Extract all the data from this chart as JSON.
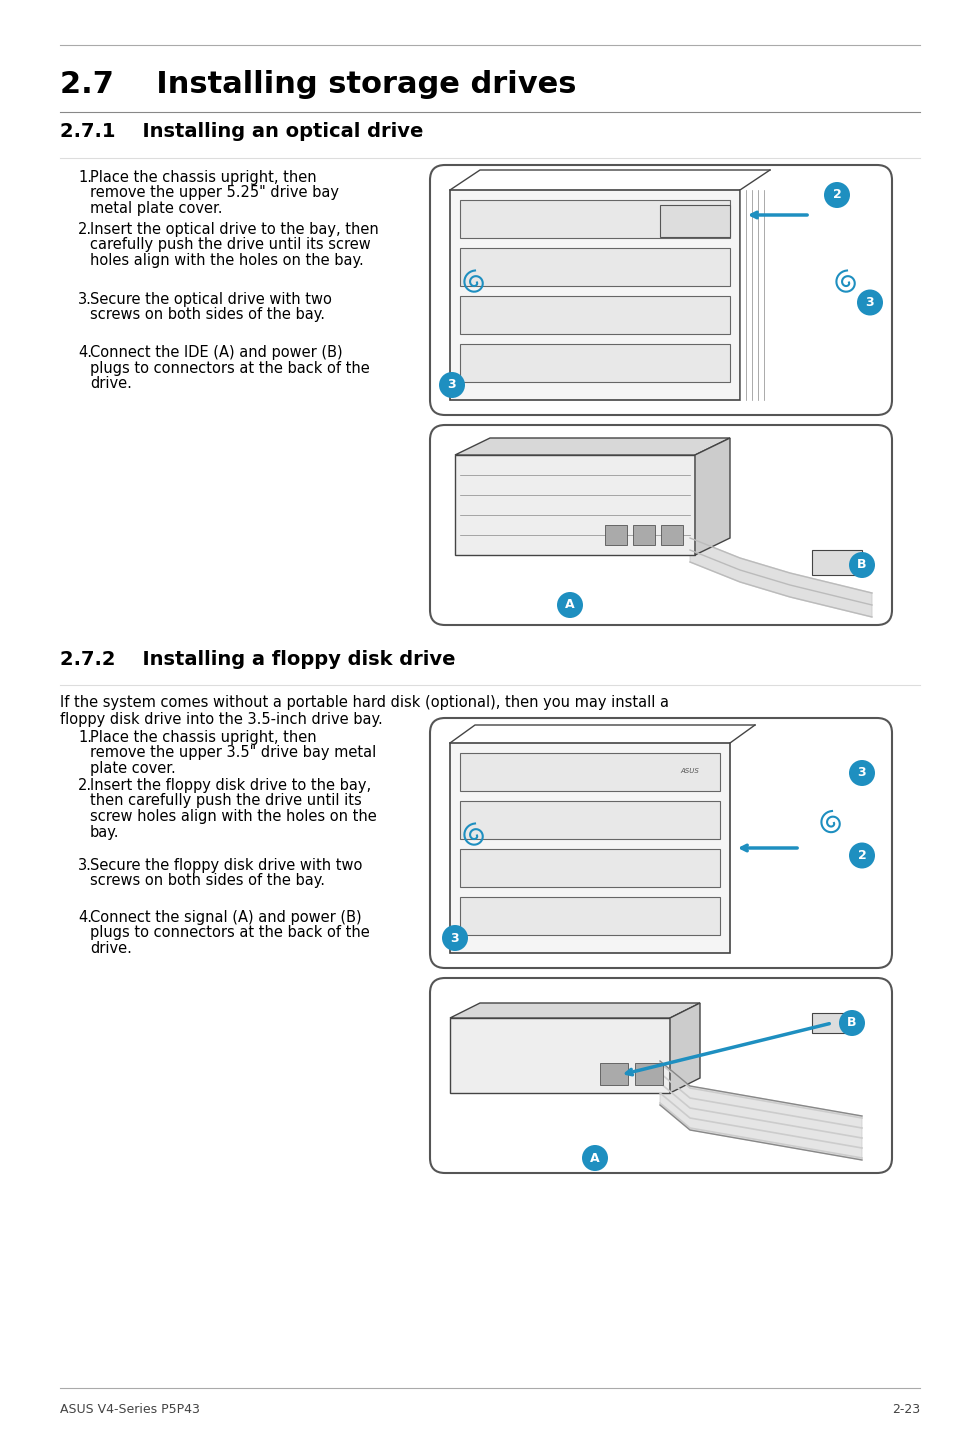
{
  "page_bg": "#ffffff",
  "text_color": "#000000",
  "blue_color": "#1e8fc0",
  "main_title": "2.7    Installing storage drives",
  "section1_title": "2.7.1    Installing an optical drive",
  "section2_title": "2.7.2    Installing a floppy disk drive",
  "section2_intro_line1": "If the system comes without a portable hard disk (optional), then you may install a",
  "section2_intro_line2": "floppy disk drive into the 3.5-inch drive bay.",
  "optical_steps": [
    {
      "num": "1.",
      "lines": [
        "Place the chassis upright, then",
        "remove the upper 5.25\" drive bay",
        "metal plate cover."
      ]
    },
    {
      "num": "2.",
      "lines": [
        "Insert the optical drive to the bay, then",
        "carefully push the drive until its screw",
        "holes align with the holes on the bay."
      ]
    },
    {
      "num": "3.",
      "lines": [
        "Secure the optical drive with two",
        "screws on both sides of the bay."
      ]
    },
    {
      "num": "4.",
      "lines": [
        "Connect the IDE (A) and power (B)",
        "plugs to connectors at the back of the",
        "drive."
      ]
    }
  ],
  "floppy_steps": [
    {
      "num": "1.",
      "lines": [
        "Place the chassis upright, then",
        "remove the upper 3.5\" drive bay metal",
        "plate cover."
      ]
    },
    {
      "num": "2.",
      "lines": [
        "Insert the floppy disk drive to the bay,",
        "then carefully push the drive until its",
        "screw holes align with the holes on the",
        "bay."
      ]
    },
    {
      "num": "3.",
      "lines": [
        "Secure the floppy disk drive with two",
        "screws on both sides of the bay."
      ]
    },
    {
      "num": "4.",
      "lines": [
        "Connect the signal (A) and power (B)",
        "plugs to connectors at the back of the",
        "drive."
      ]
    }
  ],
  "footer_left": "ASUS V4-Series P5P43",
  "footer_right": "2-23"
}
